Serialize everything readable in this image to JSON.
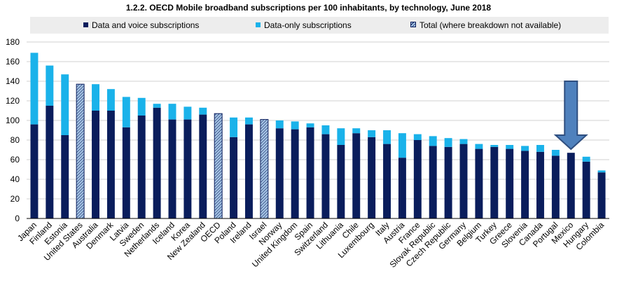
{
  "chart_data": {
    "type": "bar",
    "stacked": true,
    "title": "1.2.2. OECD Mobile broadband subscriptions per 100 inhabitants, by technology, June 2018",
    "xlabel": "",
    "ylabel": "",
    "ylim": [
      0,
      180
    ],
    "yticks": [
      0,
      20,
      40,
      60,
      80,
      100,
      120,
      140,
      160,
      180
    ],
    "grid": true,
    "legend_position": "top",
    "categories": [
      "Japan",
      "Finland",
      "Estonia",
      "United States",
      "Australia",
      "Denmark",
      "Latvia",
      "Sweden",
      "Netherlands",
      "Iceland",
      "Korea",
      "New Zealand",
      "OECD",
      "Poland",
      "Ireland",
      "Israel",
      "Norway",
      "United Kingdom",
      "Spain",
      "Switzerland",
      "Lithuania",
      "Chile",
      "Luxembourg",
      "Italy",
      "Austria",
      "France",
      "Slovak Republic",
      "Czech Republic",
      "Germany",
      "Belgium",
      "Turkey",
      "Greece",
      "Slovenia",
      "Canada",
      "Portugal",
      "Mexico",
      "Hungary",
      "Colombia"
    ],
    "series": [
      {
        "name": "Data and voice subscriptions",
        "color": "#0a1d5c",
        "values": [
          96,
          115,
          85,
          null,
          110,
          110,
          93,
          105,
          113,
          101,
          101,
          106,
          null,
          83,
          96,
          null,
          92,
          91,
          93,
          86,
          75,
          87,
          83,
          76,
          62,
          80,
          74,
          73,
          76,
          71,
          73,
          71,
          69,
          68,
          64,
          67,
          58,
          47
        ]
      },
      {
        "name": "Data-only subscriptions",
        "color": "#1ab2ea",
        "values": [
          73,
          41,
          62,
          null,
          27,
          22,
          31,
          18,
          4,
          16,
          13,
          7,
          null,
          20,
          7,
          null,
          8,
          8,
          4,
          9,
          17,
          5,
          7,
          14,
          25,
          6,
          10,
          9,
          5,
          5,
          2,
          4,
          5,
          7,
          6,
          0,
          5,
          2
        ]
      },
      {
        "name": "Total (where breakdown not available)",
        "color": "#a7c6e6",
        "pattern": "diagonal-hatch",
        "values": [
          null,
          null,
          null,
          137,
          null,
          null,
          null,
          null,
          null,
          null,
          null,
          null,
          107,
          null,
          null,
          101,
          null,
          null,
          null,
          null,
          null,
          null,
          null,
          null,
          null,
          null,
          null,
          null,
          null,
          null,
          null,
          null,
          null,
          null,
          null,
          null,
          null,
          null
        ]
      }
    ],
    "highlight": {
      "category": "Mexico",
      "marker": "arrow-down-icon",
      "color": "#4f81bd"
    }
  }
}
